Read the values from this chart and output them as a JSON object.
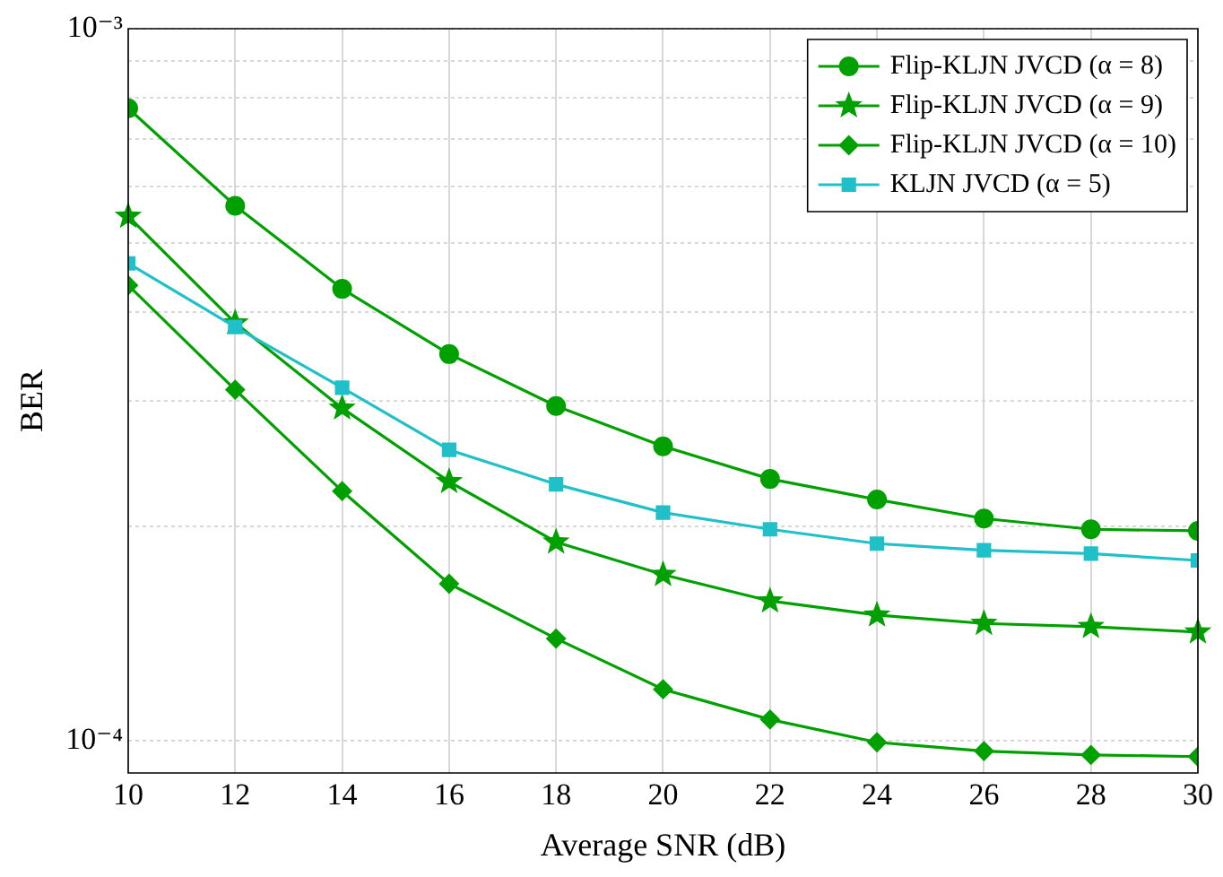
{
  "chart_data": {
    "type": "line",
    "xlabel": "Average SNR (dB)",
    "ylabel": "BER",
    "log": "y",
    "grid": true,
    "legend": "top right",
    "line_style": "solid",
    "x": [
      10,
      12,
      14,
      16,
      18,
      20,
      22,
      24,
      26,
      28,
      30
    ],
    "xlim": [
      10,
      30
    ],
    "xticks": [
      10,
      12,
      14,
      16,
      18,
      20,
      22,
      24,
      26,
      28,
      30
    ],
    "ylim": [
      9e-05,
      0.001
    ],
    "yticks": [
      {
        "value": 0.0001,
        "label": "10⁻⁴"
      },
      {
        "value": 0.0002,
        "label": null
      },
      {
        "value": 0.0003,
        "label": null
      },
      {
        "value": 0.0004,
        "label": null
      },
      {
        "value": 0.0005,
        "label": null
      },
      {
        "value": 0.0006,
        "label": null
      },
      {
        "value": 0.0007,
        "label": null
      },
      {
        "value": 0.0008,
        "label": null
      },
      {
        "value": 0.0009,
        "label": null
      },
      {
        "value": 0.001,
        "label": "10⁻³"
      }
    ],
    "series": [
      {
        "name": "Flip-KLJN JVCD (α = 8)",
        "color": "#00a000",
        "marker": "circle",
        "values": [
          0.000773,
          0.000564,
          0.000431,
          0.000349,
          0.000295,
          0.000259,
          0.000233,
          0.000218,
          0.000205,
          0.000198,
          0.000197
        ]
      },
      {
        "name": "Flip-KLJN JVCD (α = 9)",
        "color": "#00a000",
        "marker": "star",
        "values": [
          0.000545,
          0.000386,
          0.000293,
          0.000231,
          0.00019,
          0.000171,
          0.000157,
          0.00015,
          0.000146,
          0.0001445,
          0.000142
        ]
      },
      {
        "name": "Flip-KLJN JVCD (α = 10)",
        "color": "#00a000",
        "marker": "diamond",
        "values": [
          0.000436,
          0.000311,
          0.000224,
          0.000166,
          0.000139,
          0.000118,
          0.000107,
          9.94e-05,
          9.66e-05,
          9.54e-05,
          9.49e-05
        ]
      },
      {
        "name": "KLJN JVCD (α = 5)",
        "color": "#20c0c8",
        "marker": "square",
        "values": [
          0.000468,
          0.000381,
          0.000313,
          0.000256,
          0.000229,
          0.000209,
          0.000198,
          0.000189,
          0.000185,
          0.000183,
          0.000179
        ]
      }
    ]
  }
}
